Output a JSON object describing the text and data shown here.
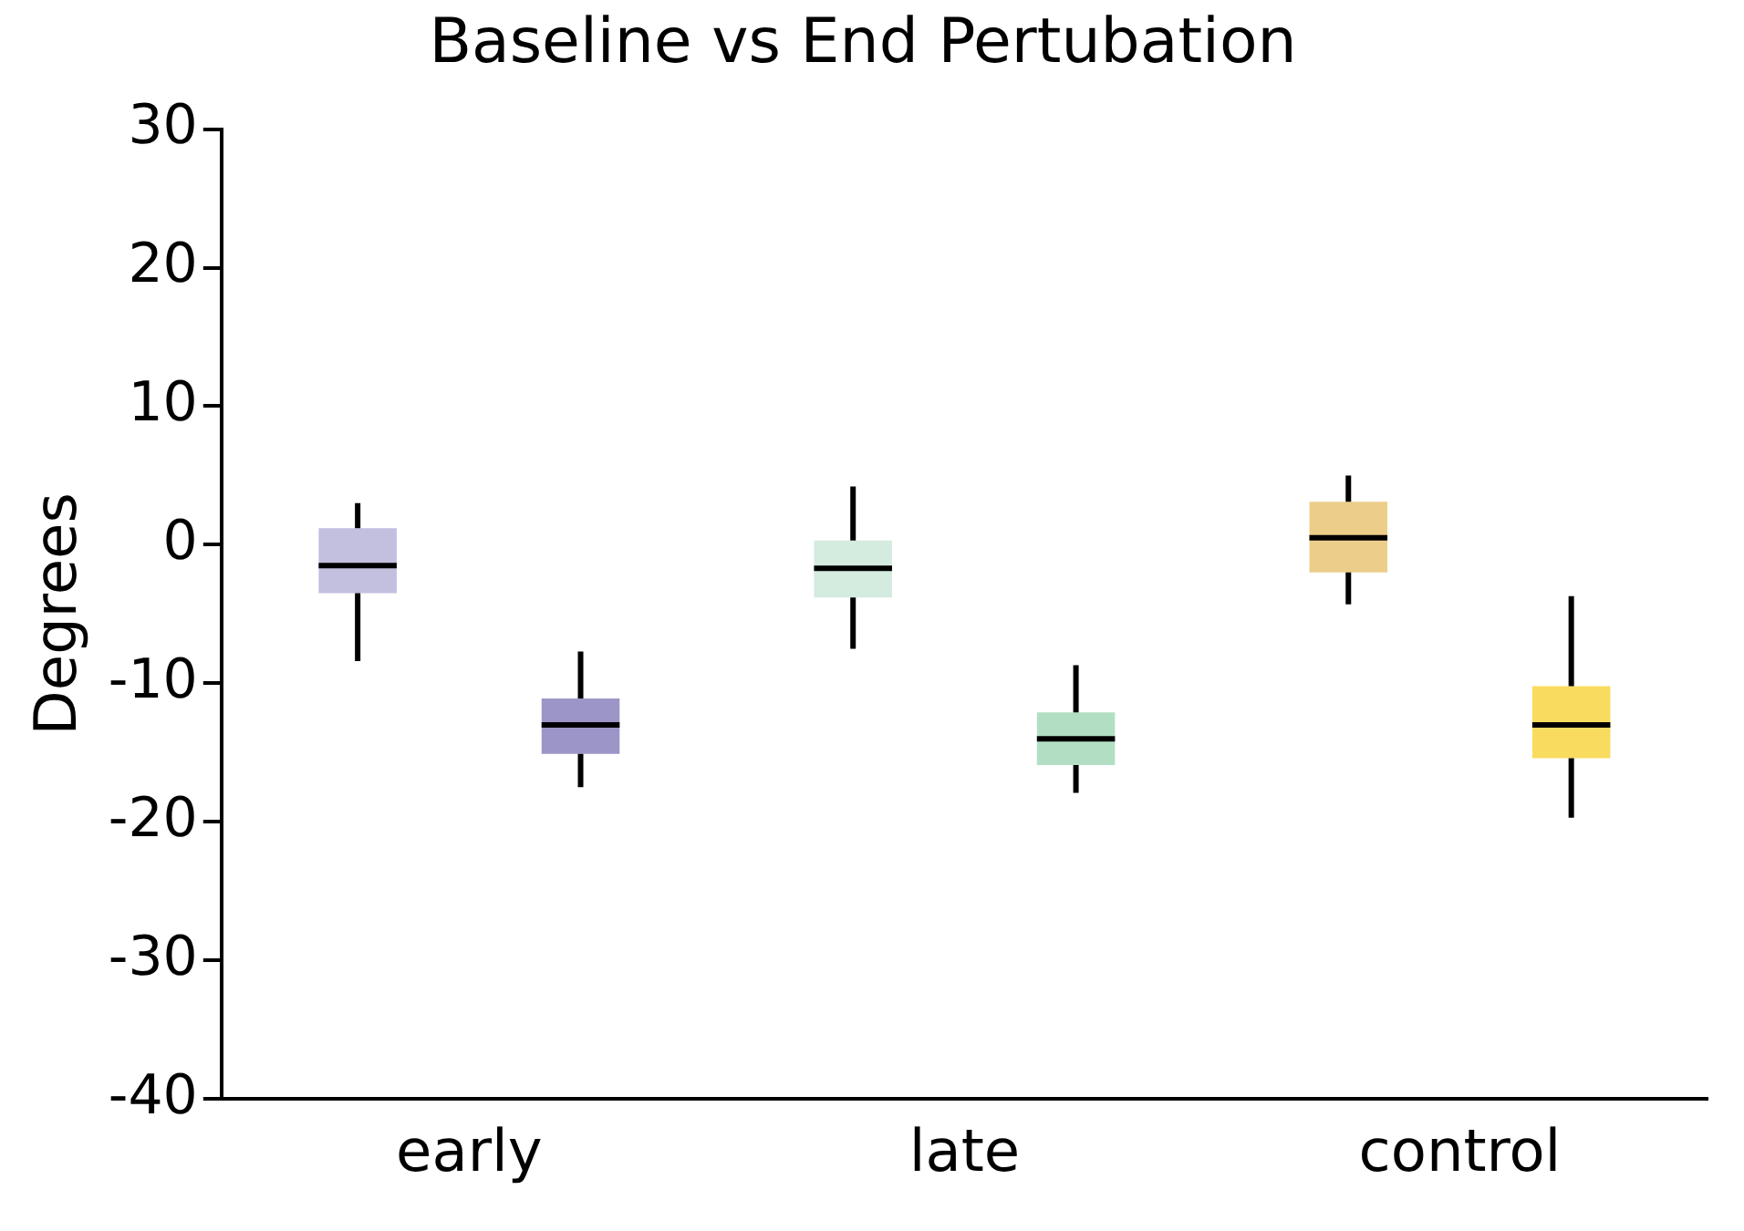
{
  "chart_data": {
    "type": "box",
    "title": "Baseline vs End Pertubation",
    "ylabel": "Degrees",
    "categories": [
      "early",
      "late",
      "control"
    ],
    "series": [
      {
        "colors": [
          "#c2bfdf",
          "#d4ebdf",
          "#ecce8a"
        ],
        "boxes": [
          {
            "low": -8.4,
            "q1": -3.5,
            "median": -1.5,
            "q3": 1.2,
            "high": 3
          },
          {
            "low": -7.5,
            "q1": -3.8,
            "median": -1.7,
            "q3": 0.3,
            "high": 4.2
          },
          {
            "low": -4.3,
            "q1": -2,
            "median": 0.5,
            "q3": 3.1,
            "high": 5
          }
        ]
      },
      {
        "colors": [
          "#9c95c8",
          "#b2dfc4",
          "#f9db5f"
        ],
        "boxes": [
          {
            "low": -17.5,
            "q1": -15.1,
            "median": -13,
            "q3": -11.1,
            "high": -7.7
          },
          {
            "low": -17.9,
            "q1": -15.9,
            "median": -14,
            "q3": -12.1,
            "high": -8.7
          },
          {
            "low": -19.7,
            "q1": -15.4,
            "median": -13,
            "q3": -10.2,
            "high": -3.7
          }
        ]
      }
    ],
    "ylim": [
      -40,
      30
    ],
    "yticks": [
      -40,
      -30,
      -20,
      -10,
      0,
      10,
      20,
      30
    ],
    "grid": false,
    "legend": false
  }
}
